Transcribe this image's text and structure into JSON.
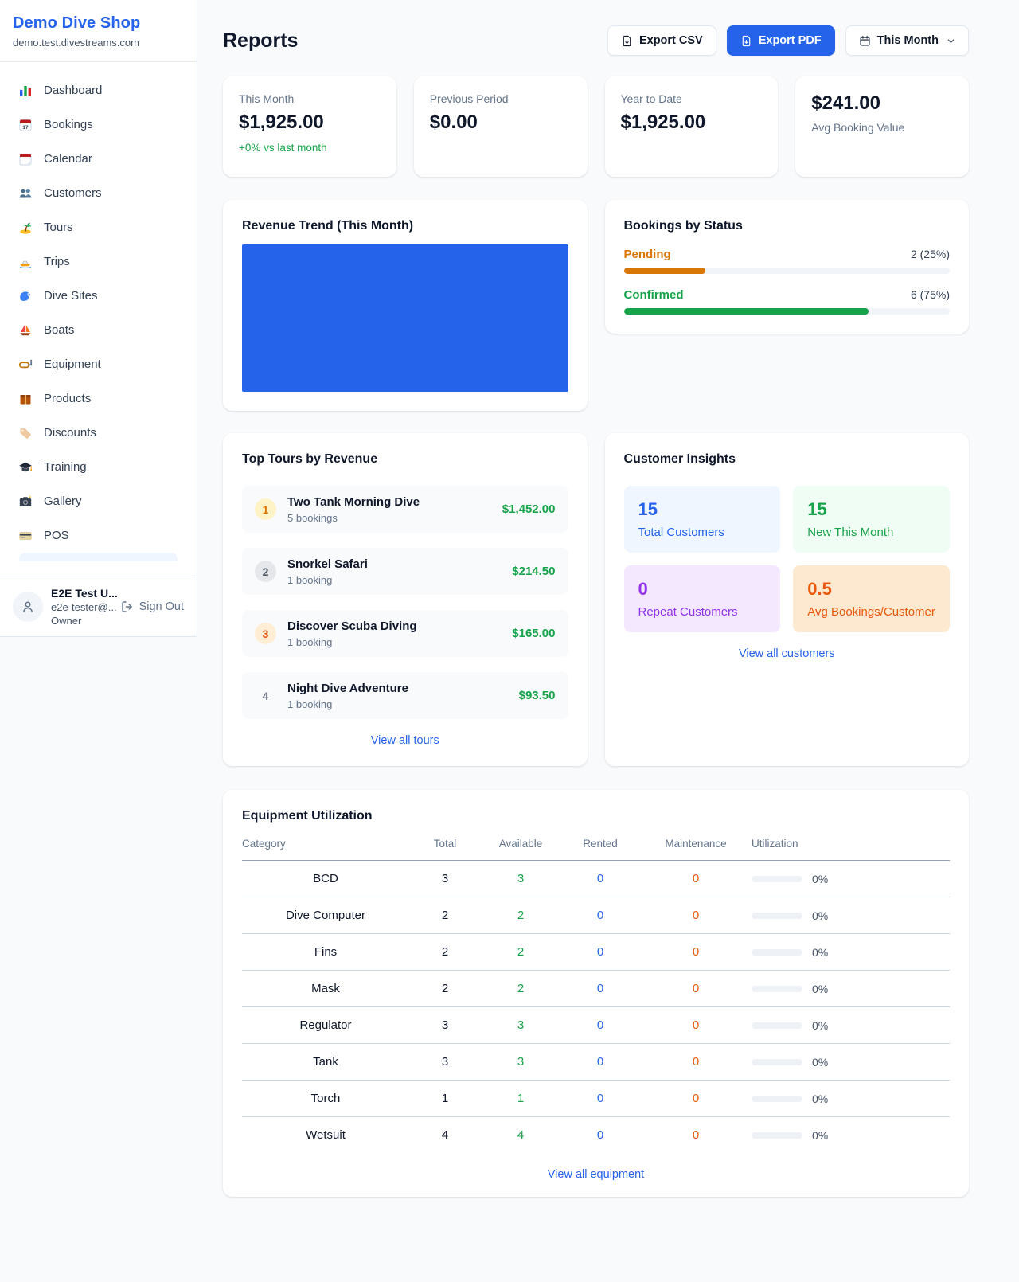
{
  "sidebar": {
    "shop_name": "Demo Dive Shop",
    "shop_domain": "demo.test.divestreams.com",
    "items": [
      {
        "label": "Dashboard",
        "icon": "bar-chart-icon"
      },
      {
        "label": "Bookings",
        "icon": "calendar-17-icon"
      },
      {
        "label": "Calendar",
        "icon": "tear-off-calendar-icon"
      },
      {
        "label": "Customers",
        "icon": "two-people-icon"
      },
      {
        "label": "Tours",
        "icon": "desert-island-icon"
      },
      {
        "label": "Trips",
        "icon": "speedboat-icon"
      },
      {
        "label": "Dive Sites",
        "icon": "wave-icon"
      },
      {
        "label": "Boats",
        "icon": "sailboat-icon"
      },
      {
        "label": "Equipment",
        "icon": "diving-mask-icon"
      },
      {
        "label": "Products",
        "icon": "package-icon"
      },
      {
        "label": "Discounts",
        "icon": "label-tag-icon"
      },
      {
        "label": "Training",
        "icon": "graduation-cap-icon"
      },
      {
        "label": "Gallery",
        "icon": "camera-icon"
      },
      {
        "label": "POS",
        "icon": "credit-card-icon"
      }
    ],
    "user": {
      "name": "E2E Test U...",
      "email": "e2e-tester@...",
      "role": "Owner",
      "sign_out_label": "Sign Out"
    }
  },
  "header": {
    "title": "Reports",
    "export_csv_label": "Export CSV",
    "export_pdf_label": "Export PDF",
    "period_label": "This Month"
  },
  "stats": [
    {
      "label": "This Month",
      "value": "$1,925.00",
      "note": "+0% vs last month"
    },
    {
      "label": "Previous Period",
      "value": "$0.00"
    },
    {
      "label": "Year to Date",
      "value": "$1,925.00"
    },
    {
      "label": "Avg Booking Value",
      "value": "$241.00"
    }
  ],
  "chart_data": [
    {
      "type": "bar",
      "title": "Revenue Trend (This Month)",
      "categories": [
        "This Month"
      ],
      "values": [
        1925
      ],
      "ylim": [
        0,
        1925
      ],
      "color": "#2563eb",
      "note": "single full-width solid bar, no axes, gridlines or tick labels shown"
    },
    {
      "type": "bar",
      "title": "Bookings by Status",
      "categories": [
        "Pending",
        "Confirmed"
      ],
      "values": [
        2,
        6
      ],
      "percent": [
        25,
        75
      ],
      "colors": [
        "#d97706",
        "#16a34a"
      ]
    }
  ],
  "revenue_trend": {
    "title": "Revenue Trend (This Month)"
  },
  "bookings_by_status": {
    "title": "Bookings by Status",
    "rows": [
      {
        "label": "Pending",
        "value": "2 (25%)",
        "pct": 25,
        "color": "#d97706"
      },
      {
        "label": "Confirmed",
        "value": "6 (75%)",
        "pct": 75,
        "color": "#16a34a"
      }
    ]
  },
  "top_tours": {
    "title": "Top Tours by Revenue",
    "rows": [
      {
        "rank": "1",
        "name": "Two Tank Morning Dive",
        "bookings": "5 bookings",
        "revenue": "$1,452.00"
      },
      {
        "rank": "2",
        "name": "Snorkel Safari",
        "bookings": "1 booking",
        "revenue": "$214.50"
      },
      {
        "rank": "3",
        "name": "Discover Scuba Diving",
        "bookings": "1 booking",
        "revenue": "$165.00"
      },
      {
        "rank": "4",
        "name": "Night Dive Adventure",
        "bookings": "1 booking",
        "revenue": "$93.50"
      }
    ],
    "view_all": "View all tours"
  },
  "customer_insights": {
    "title": "Customer Insights",
    "tiles": [
      {
        "value": "15",
        "label": "Total Customers",
        "accent": "#2563eb"
      },
      {
        "value": "15",
        "label": "New This Month",
        "accent": "#16a34a"
      },
      {
        "value": "0",
        "label": "Repeat Customers",
        "accent": "#9333ea"
      },
      {
        "value": "0.5",
        "label": "Avg Bookings/Customer",
        "accent": "#ea580c"
      }
    ],
    "view_all": "View all customers"
  },
  "equipment": {
    "title": "Equipment Utilization",
    "columns": [
      "Category",
      "Total",
      "Available",
      "Rented",
      "Maintenance",
      "Utilization"
    ],
    "rows": [
      {
        "category": "BCD",
        "total": "3",
        "available": "3",
        "rented": "0",
        "maintenance": "0",
        "utilization": "0%"
      },
      {
        "category": "Dive Computer",
        "total": "2",
        "available": "2",
        "rented": "0",
        "maintenance": "0",
        "utilization": "0%"
      },
      {
        "category": "Fins",
        "total": "2",
        "available": "2",
        "rented": "0",
        "maintenance": "0",
        "utilization": "0%"
      },
      {
        "category": "Mask",
        "total": "2",
        "available": "2",
        "rented": "0",
        "maintenance": "0",
        "utilization": "0%"
      },
      {
        "category": "Regulator",
        "total": "3",
        "available": "3",
        "rented": "0",
        "maintenance": "0",
        "utilization": "0%"
      },
      {
        "category": "Tank",
        "total": "3",
        "available": "3",
        "rented": "0",
        "maintenance": "0",
        "utilization": "0%"
      },
      {
        "category": "Torch",
        "total": "1",
        "available": "1",
        "rented": "0",
        "maintenance": "0",
        "utilization": "0%"
      },
      {
        "category": "Wetsuit",
        "total": "4",
        "available": "4",
        "rented": "0",
        "maintenance": "0",
        "utilization": "0%"
      }
    ],
    "view_all": "View all equipment"
  }
}
